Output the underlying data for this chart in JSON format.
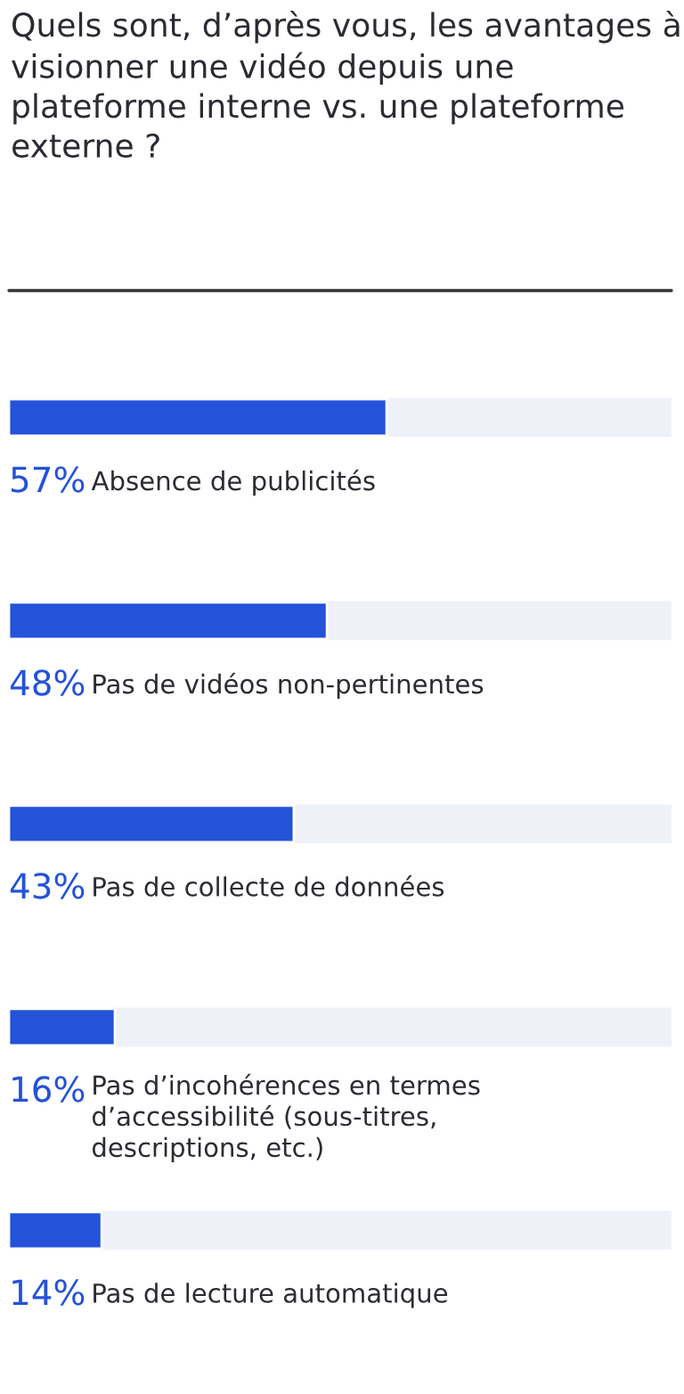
{
  "chart_data": {
    "type": "bar",
    "orientation": "horizontal",
    "title": "Quels sont, d’après vous, les avantages à visionner une vidéo depuis une plateforme interne vs. une plateforme externe ?",
    "categories": [
      "Absence de publicités",
      "Pas de vidéos non-pertinentes",
      "Pas de collecte de données",
      "Pas d’incohérences en termes\nd’accessibilité (sous-titres,\ndescriptions, etc.)",
      "Pas de lecture automatique"
    ],
    "values": [
      57,
      48,
      43,
      16,
      14
    ],
    "value_labels": [
      "57%",
      "48%",
      "43%",
      "16%",
      "14%"
    ],
    "color": "#2452d9",
    "xlim": [
      0,
      100
    ],
    "tick_labels": false,
    "legend": false
  }
}
